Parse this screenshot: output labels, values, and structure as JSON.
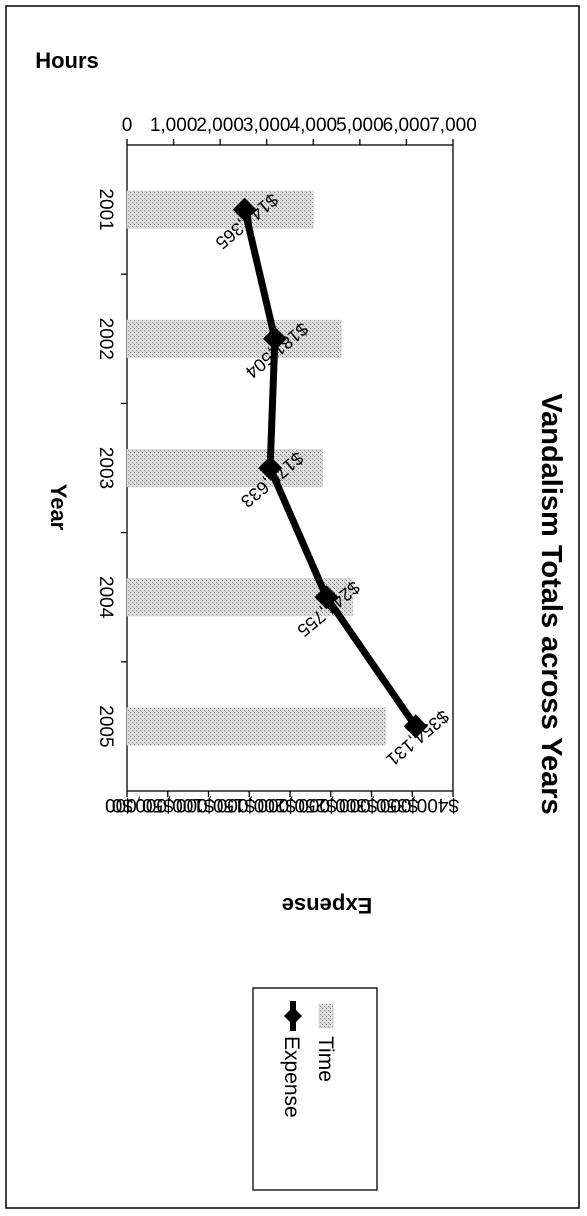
{
  "chart_data": {
    "type": "bar",
    "title": "Vandalism Totals across Years",
    "xlabel": "Year",
    "categories": [
      "2001",
      "2002",
      "2003",
      "2004",
      "2005"
    ],
    "y_left": {
      "label": "Hours",
      "range": [
        0,
        7000
      ],
      "ticks": [
        "0",
        "1,000",
        "2,000",
        "3,000",
        "4,000",
        "5,000",
        "6,000",
        "7,000"
      ]
    },
    "y_right": {
      "label": "Expense",
      "range": [
        0,
        400000
      ],
      "ticks": [
        "$0",
        "$50,000",
        "$100,000",
        "$150,000",
        "$200,000",
        "$250,000",
        "$300,000",
        "$350,000",
        "$400,000"
      ]
    },
    "series": [
      {
        "name": "Time",
        "type": "bar",
        "axis": "left",
        "values": [
          4000,
          4600,
          4200,
          4850,
          5550
        ]
      },
      {
        "name": "Expense",
        "type": "line",
        "axis": "right",
        "values": [
          144365,
          181504,
          175633,
          244755,
          354131
        ],
        "labels": [
          "$144,365",
          "$181,504",
          "$175,633",
          "$244,755",
          "$354,131"
        ]
      }
    ],
    "legend": [
      "Time",
      "Expense"
    ],
    "legend_position": "bottom",
    "orientation": "rotated 90° clockwise",
    "grid": false,
    "colors": {
      "bar": "#c4c4c4",
      "line": "#000000"
    }
  }
}
